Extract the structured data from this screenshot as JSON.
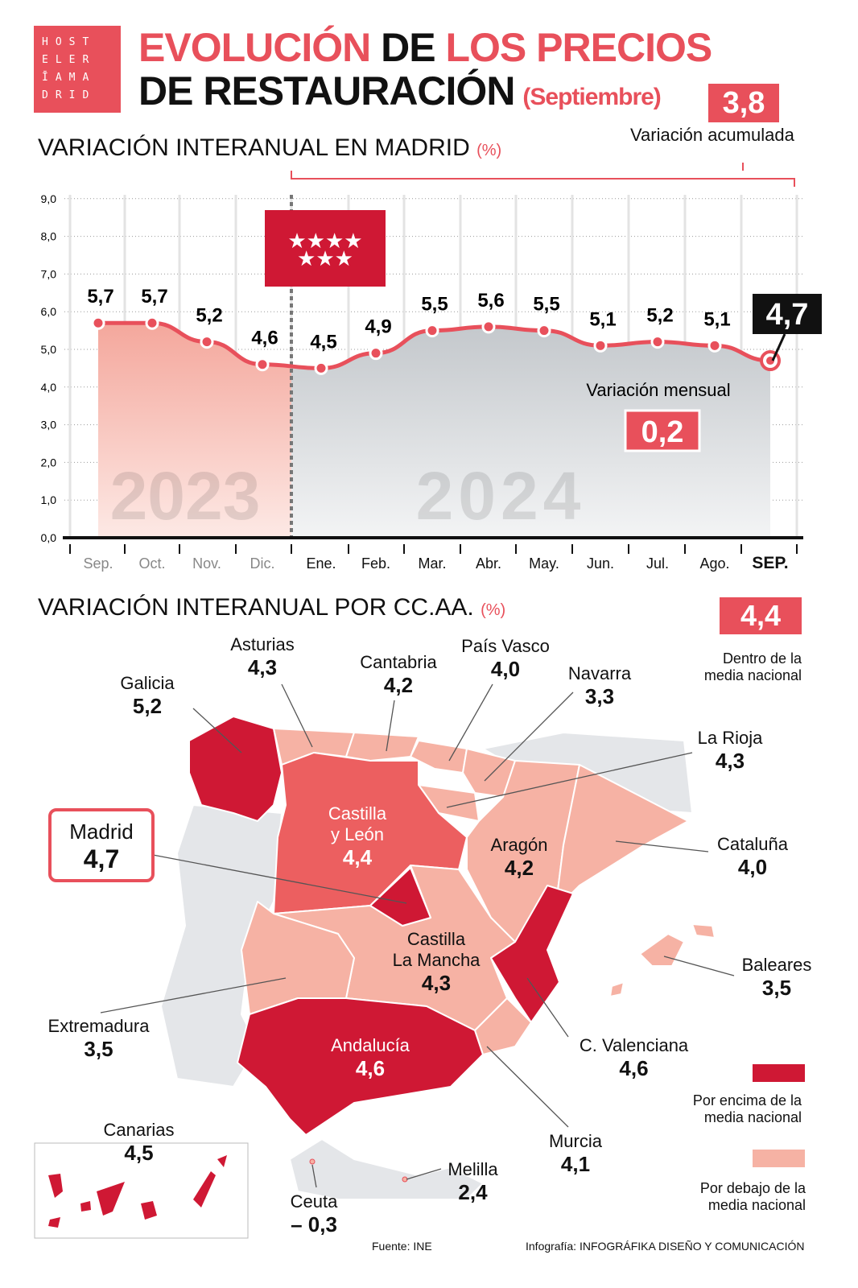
{
  "logo": {
    "lines": [
      "HOST",
      "ELER",
      "ĪAMA",
      "DRID"
    ]
  },
  "title": {
    "part1_red": "EVOLUCIÓN",
    "part1_black": " DE ",
    "part1_red2": "LOS PRECIOS",
    "line2": "DE RESTAURACIÓN",
    "month": "(Septiembre)"
  },
  "accumulated": {
    "value": "3,8",
    "label": "Variación acumulada"
  },
  "section1": {
    "title": "VARIACIÓN INTERANUAL EN MADRID",
    "unit": "(%)"
  },
  "monthly": {
    "label": "Variación mensual",
    "value": "0,2"
  },
  "chart_data": {
    "type": "area",
    "title": "VARIACIÓN INTERANUAL EN MADRID (%)",
    "categories": [
      "Sep.",
      "Oct.",
      "Nov.",
      "Dic.",
      "Ene.",
      "Feb.",
      "Mar.",
      "Abr.",
      "May.",
      "Jun.",
      "Jul.",
      "Ago.",
      "SEP."
    ],
    "values": [
      5.7,
      5.7,
      5.2,
      4.6,
      4.5,
      4.9,
      5.5,
      5.6,
      5.5,
      5.1,
      5.2,
      5.1,
      4.7
    ],
    "data_labels": [
      "5,7",
      "5,7",
      "5,2",
      "4,6",
      "4,5",
      "4,9",
      "5,5",
      "5,6",
      "5,5",
      "5,1",
      "5,2",
      "5,1",
      "4,7"
    ],
    "yticks": [
      "0,0",
      "1,0",
      "2,0",
      "3,0",
      "4,0",
      "5,0",
      "6,0",
      "7,0",
      "8,0",
      "9,0"
    ],
    "ylim": [
      0,
      9
    ],
    "year_labels": [
      "2023",
      "2024"
    ],
    "colors": {
      "line": "#e8505b",
      "area_2023": "#f4a79c",
      "area_2024": "#c4c8cc",
      "highlight": "#111111"
    },
    "grid": true
  },
  "section2": {
    "title": "VARIACIÓN INTERANUAL POR CC.AA.",
    "unit": "(%)"
  },
  "national": {
    "value": "4,4",
    "label1": "Dentro de la",
    "label2": "media nacional"
  },
  "regions": {
    "galicia": {
      "name": "Galicia",
      "value": "5,2"
    },
    "asturias": {
      "name": "Asturias",
      "value": "4,3"
    },
    "cantabria": {
      "name": "Cantabria",
      "value": "4,2"
    },
    "pais_vasco": {
      "name": "País Vasco",
      "value": "4,0"
    },
    "navarra": {
      "name": "Navarra",
      "value": "3,3"
    },
    "la_rioja": {
      "name": "La Rioja",
      "value": "4,3"
    },
    "castilla_leon": {
      "name1": "Castilla",
      "name2": "y León",
      "value": "4,4"
    },
    "madrid": {
      "name": "Madrid",
      "value": "4,7"
    },
    "aragon": {
      "name": "Aragón",
      "value": "4,2"
    },
    "cataluna": {
      "name": "Cataluña",
      "value": "4,0"
    },
    "castilla_mancha": {
      "name1": "Castilla",
      "name2": "La Mancha",
      "value": "4,3"
    },
    "baleares": {
      "name": "Baleares",
      "value": "3,5"
    },
    "extremadura": {
      "name": "Extremadura",
      "value": "3,5"
    },
    "andalucia": {
      "name": "Andalucía",
      "value": "4,6"
    },
    "valenciana": {
      "name": "C. Valenciana",
      "value": "4,6"
    },
    "murcia": {
      "name": "Murcia",
      "value": "4,1"
    },
    "canarias": {
      "name": "Canarias",
      "value": "4,5"
    },
    "ceuta": {
      "name": "Ceuta",
      "value": "– 0,3"
    },
    "melilla": {
      "name": "Melilla",
      "value": "2,4"
    }
  },
  "legend": {
    "above": {
      "line1": "Por encima de la",
      "line2": "media nacional",
      "color": "#cf1834"
    },
    "equal_color": "#ec5f60",
    "below": {
      "line1": "Por debajo de la",
      "line2": "media nacional",
      "color": "#f6b2a4"
    }
  },
  "footer": {
    "source": "Fuente: INE",
    "credit_prefix": "Infografía: ",
    "credit": "INFOGRÁFIKA DISEÑO Y COMUNICACIÓN"
  }
}
